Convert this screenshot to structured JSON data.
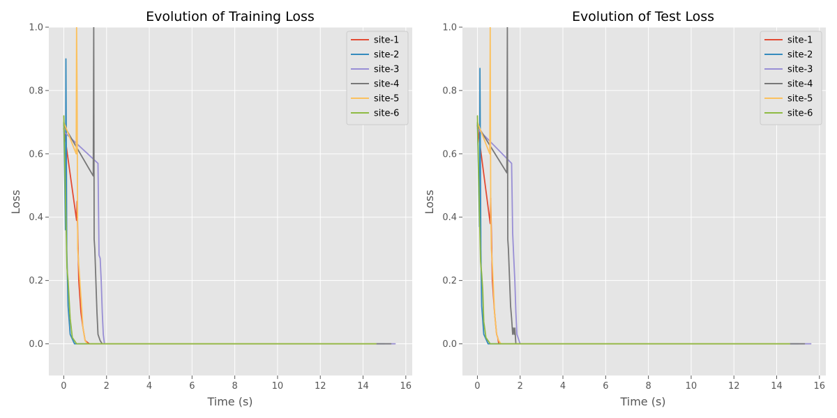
{
  "chart_data": [
    {
      "type": "line",
      "title": "Evolution of Training Loss",
      "xlabel": "Time (s)",
      "ylabel": "Loss",
      "xlim": [
        -0.7,
        16.3
      ],
      "ylim": [
        -0.1,
        1.0
      ],
      "xticks": [
        0,
        2,
        4,
        6,
        8,
        10,
        12,
        14,
        16
      ],
      "yticks": [
        0.0,
        0.2,
        0.4,
        0.6,
        0.8,
        1.0
      ],
      "xtick_labels": [
        "0",
        "2",
        "4",
        "6",
        "8",
        "10",
        "12",
        "14",
        "16"
      ],
      "ytick_labels": [
        "0.0",
        "0.2",
        "0.4",
        "0.6",
        "0.8",
        "1.0"
      ],
      "grid": true,
      "legend_position": "top-right",
      "series": [
        {
          "name": "site-1",
          "color": "#e24a33",
          "x": [
            0.0,
            0.6,
            0.62,
            0.7,
            0.8,
            0.9,
            1.0,
            1.2,
            14.0,
            14.5
          ],
          "y": [
            0.68,
            0.39,
            0.45,
            0.2,
            0.1,
            0.05,
            0.01,
            0.0,
            0.0,
            0.0
          ]
        },
        {
          "name": "site-2",
          "color": "#348abd",
          "x": [
            0.0,
            0.08,
            0.1,
            0.12,
            0.14,
            0.2,
            0.3,
            0.5,
            14.0,
            15.0
          ],
          "y": [
            0.7,
            0.36,
            0.9,
            0.62,
            0.3,
            0.12,
            0.03,
            0.0,
            0.0,
            0.0
          ]
        },
        {
          "name": "site-3",
          "color": "#988ed5",
          "x": [
            0.0,
            1.6,
            1.65,
            1.7,
            1.75,
            1.8,
            1.85,
            1.9,
            2.0,
            14.0,
            15.5
          ],
          "y": [
            0.67,
            0.57,
            0.28,
            0.27,
            0.2,
            0.1,
            0.03,
            0.0,
            0.0,
            0.0,
            0.0
          ]
        },
        {
          "name": "site-4",
          "color": "#777777",
          "x": [
            0.0,
            1.38,
            1.4,
            1.42,
            1.45,
            1.55,
            1.6,
            1.7,
            1.8,
            14.0,
            15.3
          ],
          "y": [
            0.69,
            0.53,
            1.0,
            0.33,
            0.3,
            0.1,
            0.03,
            0.01,
            0.0,
            0.0,
            0.0
          ]
        },
        {
          "name": "site-5",
          "color": "#fbc15e",
          "x": [
            0.0,
            0.58,
            0.6,
            0.62,
            0.65,
            0.7,
            0.8,
            0.9,
            1.0,
            1.1,
            14.0,
            14.6
          ],
          "y": [
            0.7,
            0.6,
            1.0,
            0.8,
            0.3,
            0.25,
            0.15,
            0.05,
            0.01,
            0.0,
            0.0,
            0.0
          ]
        },
        {
          "name": "site-6",
          "color": "#8eba42",
          "x": [
            0.0,
            0.1,
            0.15,
            0.2,
            0.3,
            0.4,
            0.6,
            14.0,
            14.6
          ],
          "y": [
            0.72,
            0.4,
            0.24,
            0.2,
            0.08,
            0.02,
            0.0,
            0.0,
            0.0
          ]
        }
      ]
    },
    {
      "type": "line",
      "title": "Evolution of Test Loss",
      "xlabel": "Time (s)",
      "ylabel": "Loss",
      "xlim": [
        -0.7,
        16.3
      ],
      "ylim": [
        -0.1,
        1.0
      ],
      "xticks": [
        0,
        2,
        4,
        6,
        8,
        10,
        12,
        14,
        16
      ],
      "yticks": [
        0.0,
        0.2,
        0.4,
        0.6,
        0.8,
        1.0
      ],
      "xtick_labels": [
        "0",
        "2",
        "4",
        "6",
        "8",
        "10",
        "12",
        "14",
        "16"
      ],
      "ytick_labels": [
        "0.0",
        "0.2",
        "0.4",
        "0.6",
        "0.8",
        "1.0"
      ],
      "grid": true,
      "legend_position": "top-right",
      "series": [
        {
          "name": "site-1",
          "color": "#e24a33",
          "x": [
            0.0,
            0.6,
            0.62,
            0.7,
            0.8,
            0.9,
            0.95,
            1.0,
            1.2,
            14.0,
            14.5
          ],
          "y": [
            0.69,
            0.38,
            0.46,
            0.2,
            0.1,
            0.03,
            0.02,
            0.0,
            0.0,
            0.0,
            0.0
          ]
        },
        {
          "name": "site-2",
          "color": "#348abd",
          "x": [
            0.0,
            0.1,
            0.12,
            0.14,
            0.16,
            0.2,
            0.3,
            0.5,
            14.0,
            15.0
          ],
          "y": [
            0.7,
            0.37,
            0.87,
            0.6,
            0.3,
            0.12,
            0.03,
            0.0,
            0.0,
            0.0
          ]
        },
        {
          "name": "site-3",
          "color": "#988ed5",
          "x": [
            0.0,
            1.6,
            1.65,
            1.7,
            1.75,
            1.8,
            1.85,
            1.9,
            2.0,
            14.0,
            15.6
          ],
          "y": [
            0.68,
            0.57,
            0.35,
            0.27,
            0.2,
            0.1,
            0.03,
            0.02,
            0.0,
            0.0,
            0.0
          ]
        },
        {
          "name": "site-4",
          "color": "#777777",
          "x": [
            0.0,
            1.38,
            1.4,
            1.42,
            1.45,
            1.55,
            1.6,
            1.65,
            1.68,
            1.72,
            1.75,
            1.8,
            14.0,
            15.3
          ],
          "y": [
            0.69,
            0.54,
            1.0,
            0.33,
            0.3,
            0.12,
            0.08,
            0.03,
            0.05,
            0.03,
            0.05,
            0.0,
            0.0,
            0.0
          ]
        },
        {
          "name": "site-5",
          "color": "#fbc15e",
          "x": [
            0.0,
            0.58,
            0.6,
            0.62,
            0.65,
            0.7,
            0.8,
            0.9,
            1.0,
            1.1,
            14.0,
            14.6
          ],
          "y": [
            0.7,
            0.6,
            1.0,
            0.45,
            0.3,
            0.25,
            0.1,
            0.03,
            0.01,
            0.0,
            0.0,
            0.0
          ]
        },
        {
          "name": "site-6",
          "color": "#8eba42",
          "x": [
            0.0,
            0.1,
            0.15,
            0.2,
            0.25,
            0.3,
            0.4,
            0.6,
            14.0,
            14.6
          ],
          "y": [
            0.72,
            0.4,
            0.26,
            0.22,
            0.17,
            0.07,
            0.02,
            0.0,
            0.0,
            0.0
          ]
        }
      ]
    }
  ]
}
